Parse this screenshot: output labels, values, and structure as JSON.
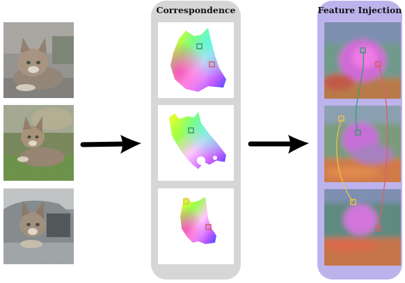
{
  "panels": {
    "correspondence": {
      "title": "Correspondence"
    },
    "feature_injection": {
      "title": "Feature Injection"
    }
  },
  "colors": {
    "correspondence_panel": "#d6d6d6",
    "feature_panel": "#bdb3ec",
    "arrow": "#000000",
    "marker_green": "#3d9b7a",
    "marker_red": "#d9606a",
    "marker_yellow": "#e6c14a"
  },
  "inputs": [
    {
      "subject": "cat-on-couch"
    },
    {
      "subject": "cat-on-grass"
    },
    {
      "subject": "cat-in-car-window"
    }
  ],
  "icons": [
    "arrow-right-icon",
    "arrow-right-icon",
    "green-keypoint-marker",
    "red-keypoint-marker",
    "yellow-keypoint-marker"
  ]
}
